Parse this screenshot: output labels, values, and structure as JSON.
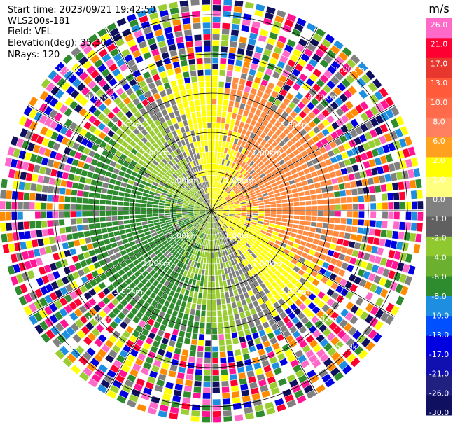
{
  "header": {
    "start_time": "Start time: 2023/09/21 19:42:50",
    "instrument": "WLS200s-181",
    "field": "Field: VEL",
    "elevation": "Elevation(deg): 35.30",
    "nrays": "NRays: 120"
  },
  "chart_data": {
    "type": "heatmap",
    "projection": "polar PPI",
    "rays": 120,
    "range_rings": [
      {
        "range_km": 1.0,
        "label": "1.00km"
      },
      {
        "range_km": 2.0,
        "label": "2.00km"
      },
      {
        "range_km": 3.0,
        "label": "3.00km"
      },
      {
        "range_km": 4.0,
        "label": "4.00km"
      },
      {
        "range_km": 5.0,
        "label": "5.00km"
      }
    ],
    "max_range_km": 5.4,
    "colorbar": {
      "unit": "m/s",
      "ticks": [
        "26.0",
        "21.0",
        "17.0",
        "13.0",
        "10.0",
        "8.0",
        "6.0",
        "2.0",
        "1.0",
        "0.0",
        "-1.0",
        "-2.0",
        "-4.0",
        "-6.0",
        "-8.0",
        "-10.0",
        "-13.0",
        "-17.0",
        "-21.0",
        "-26.0",
        "-30.0"
      ],
      "colors": [
        "#ff69c8",
        "#ff0033",
        "#e8372e",
        "#ff5a3a",
        "#ff6b4a",
        "#ff8060",
        "#ffa020",
        "#ffff00",
        "#ffff80",
        "#808080",
        "#606060",
        "#90c830",
        "#6cb030",
        "#2e8b2e",
        "#1e8fe0",
        "#0050ff",
        "#0000e0",
        "#1010b0",
        "#202080",
        "#101060"
      ]
    },
    "colors": {
      "approaching_strong": "#2e8b2e",
      "approaching_weak": "#9acd32",
      "near_zero": "#808080",
      "receding_weak": "#ffff00",
      "receding_strong": "#ff8c40",
      "noise_palette": [
        "#ff1493",
        "#ff69c8",
        "#0000e0",
        "#1e8fe0",
        "#2e8b2e",
        "#ffff00",
        "#ff8c00",
        "#ff0033",
        "#101060",
        "#9acd32",
        "#ffffff",
        "#808080"
      ]
    }
  }
}
